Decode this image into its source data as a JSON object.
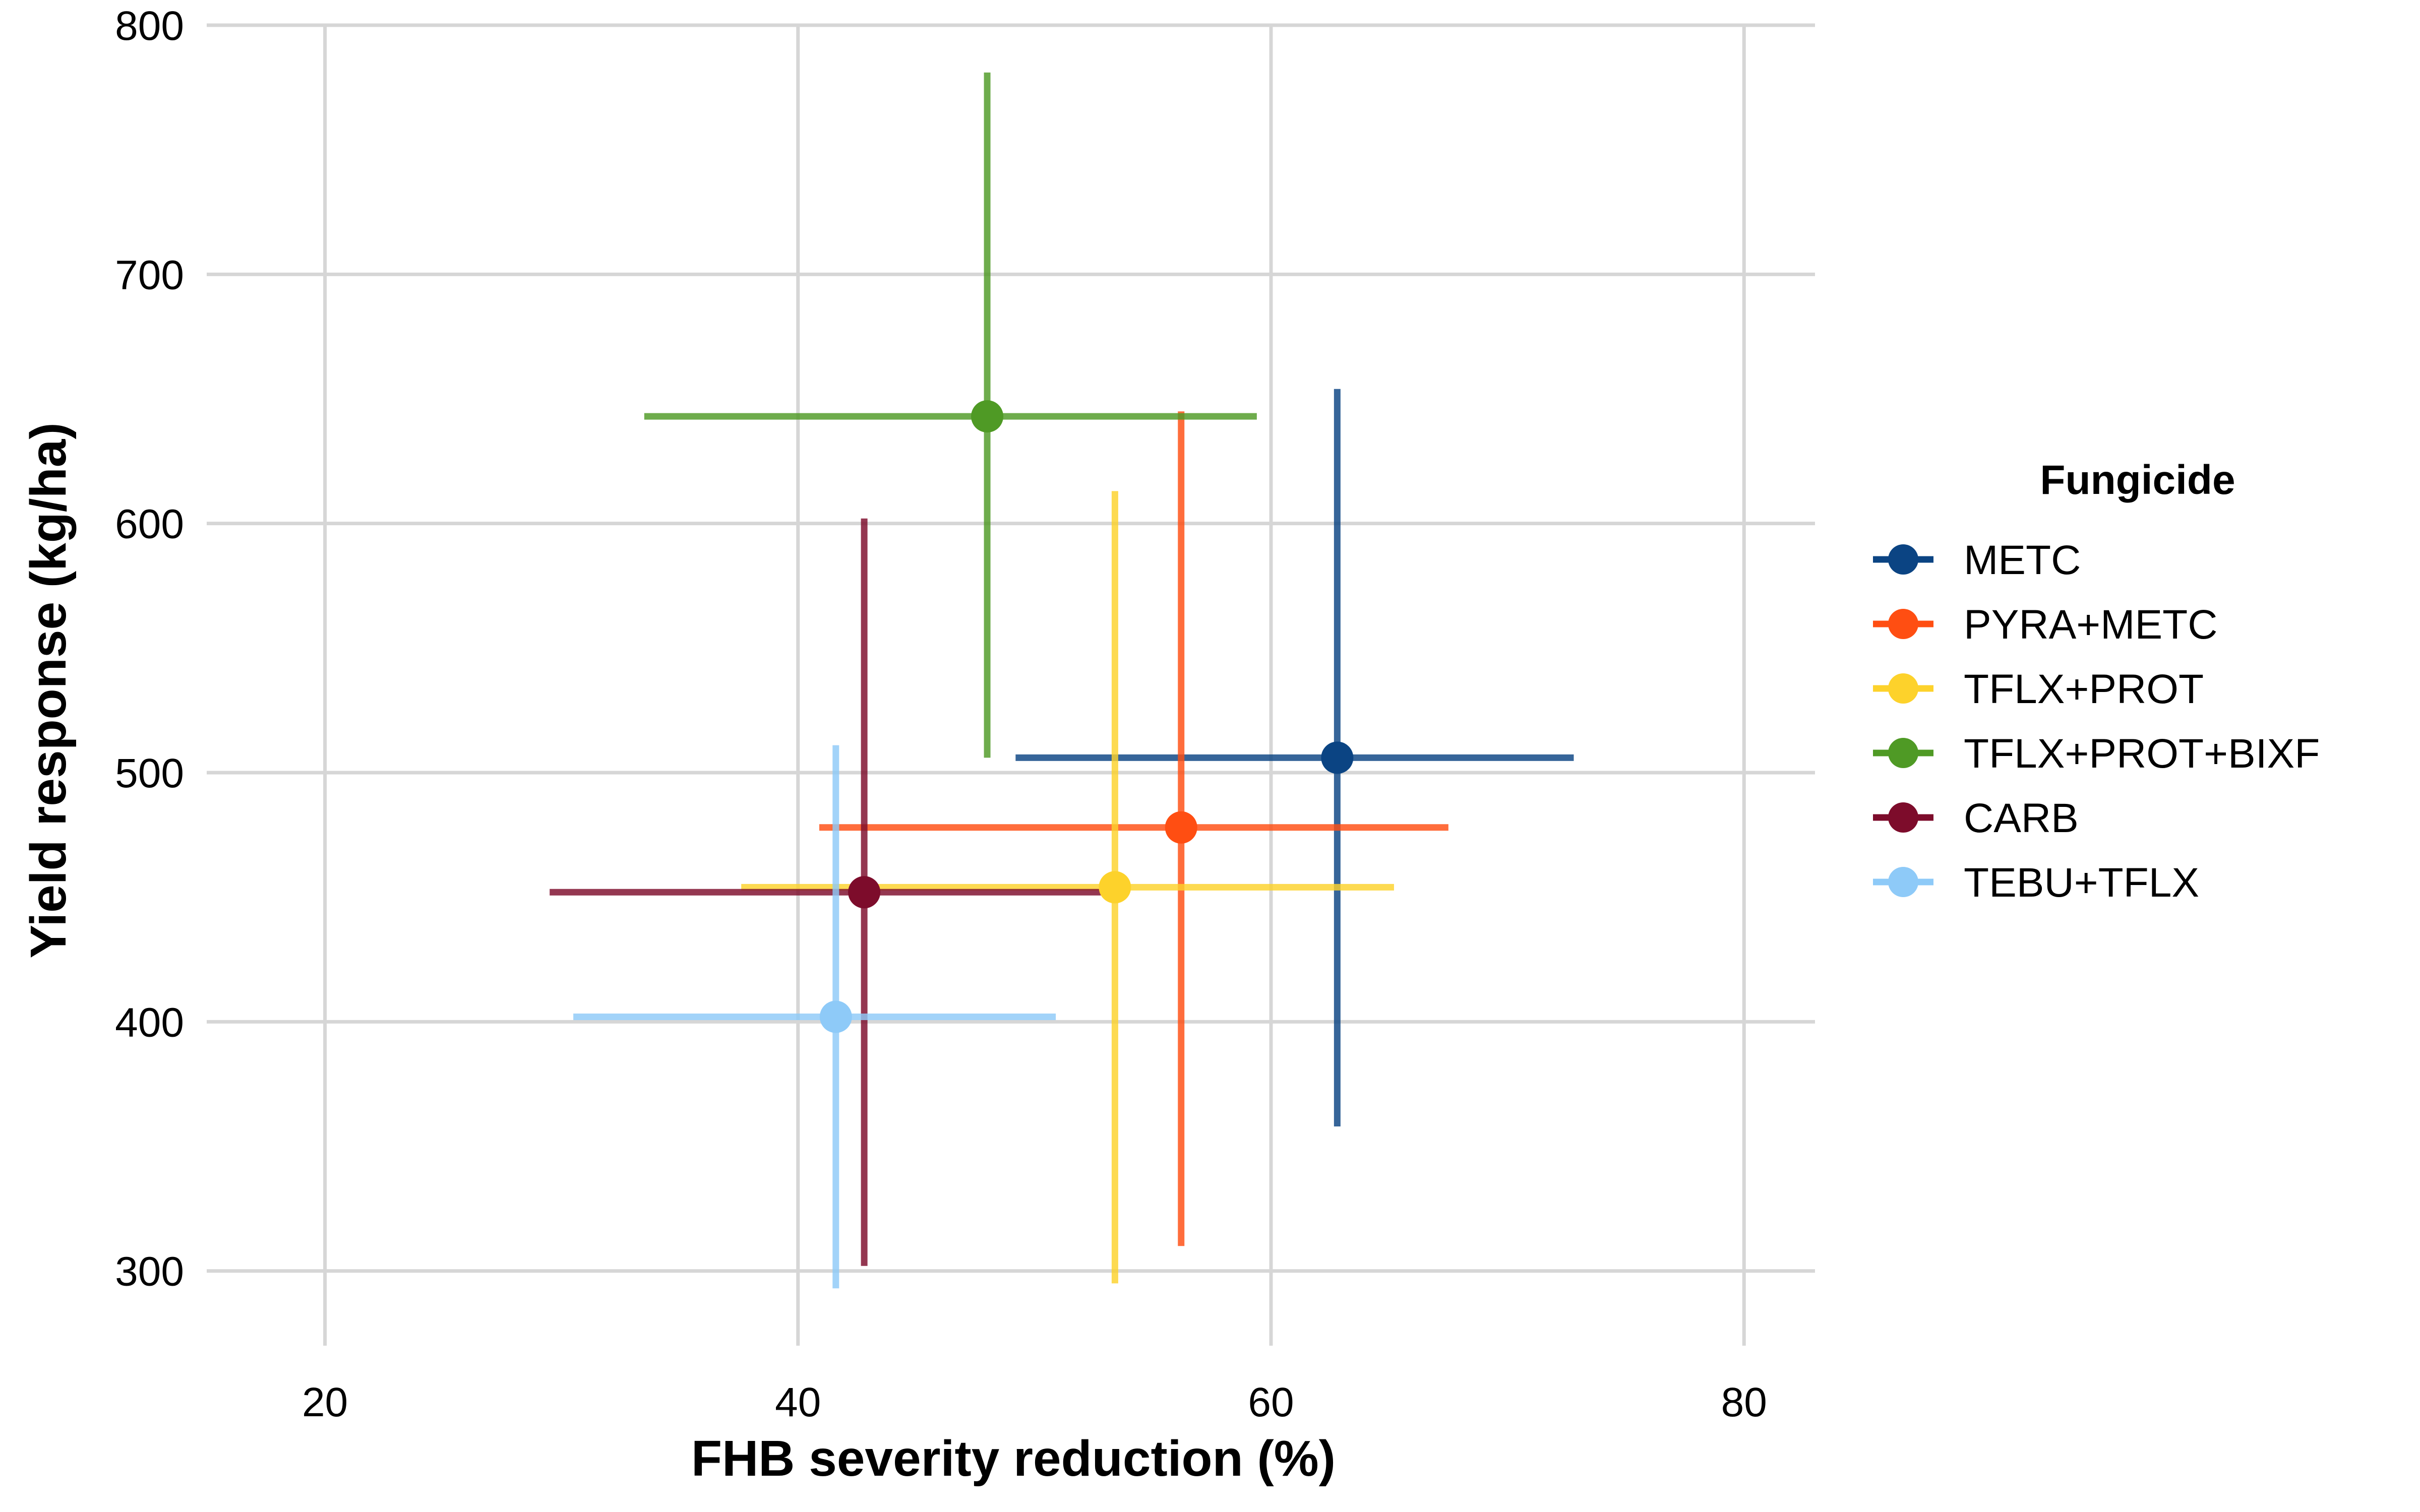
{
  "chart_data": {
    "type": "scatter",
    "xlabel": "FHB severity reduction (%)",
    "ylabel": "Yield response (kg/ha)",
    "xlim": [
      15,
      83
    ],
    "ylim": [
      270,
      800
    ],
    "xticks": [
      20,
      40,
      60,
      80
    ],
    "yticks": [
      300,
      400,
      500,
      600,
      700,
      800
    ],
    "grid": true,
    "legend": {
      "title": "Fungicide",
      "position": "right"
    },
    "series": [
      {
        "name": "METC",
        "color": "#0B4483",
        "x": 62.8,
        "y": 506,
        "x_low": 49.2,
        "x_high": 72.8,
        "y_low": 358,
        "y_high": 654
      },
      {
        "name": "PYRA+METC",
        "color": "#FF4E12",
        "x": 56.2,
        "y": 478,
        "x_low": 40.9,
        "x_high": 67.5,
        "y_low": 310,
        "y_high": 645
      },
      {
        "name": "TFLX+PROT",
        "color": "#FDD22B",
        "x": 53.4,
        "y": 454,
        "x_low": 37.6,
        "x_high": 65.2,
        "y_low": 295,
        "y_high": 613
      },
      {
        "name": "TFLX+PROT+BIXF",
        "color": "#4F9A25",
        "x": 48.0,
        "y": 643,
        "x_low": 33.5,
        "x_high": 59.4,
        "y_low": 506,
        "y_high": 781
      },
      {
        "name": "CARB",
        "color": "#7D0C2B",
        "x": 42.8,
        "y": 452,
        "x_low": 29.5,
        "x_high": 53.0,
        "y_low": 302,
        "y_high": 602
      },
      {
        "name": "TEBU+TFLX",
        "color": "#8ECAF8",
        "x": 41.6,
        "y": 402,
        "x_low": 30.5,
        "x_high": 50.9,
        "y_low": 293,
        "y_high": 511
      }
    ]
  }
}
